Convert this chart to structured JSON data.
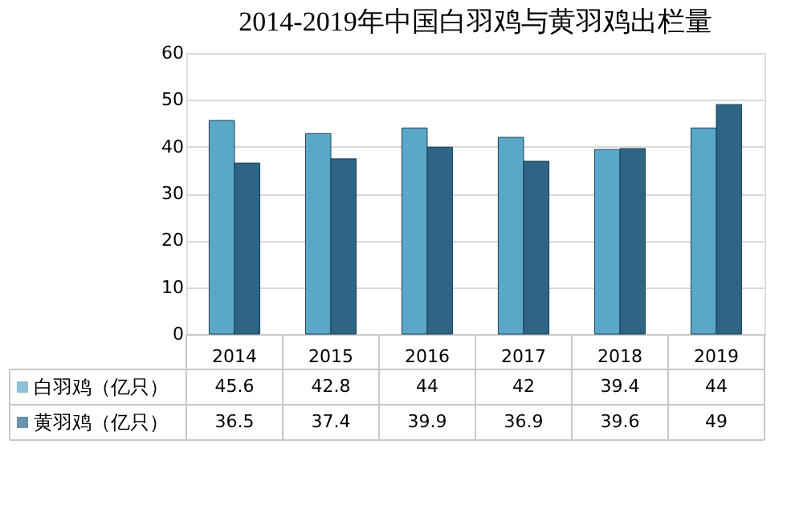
{
  "chart_data": {
    "type": "bar",
    "title": "2014-2019年中国白羽鸡与黄羽鸡出栏量",
    "categories": [
      "2014",
      "2015",
      "2016",
      "2017",
      "2018",
      "2019"
    ],
    "series": [
      {
        "name": "白羽鸡（亿只）",
        "color": "#5ba7c8",
        "values": [
          45.6,
          42.8,
          44,
          42,
          39.4,
          44
        ]
      },
      {
        "name": "黄羽鸡（亿只）",
        "color": "#2e6484",
        "values": [
          36.5,
          37.4,
          39.9,
          36.9,
          39.6,
          49
        ]
      }
    ],
    "ylim": [
      0,
      60
    ],
    "yticks": [
      0,
      10,
      20,
      30,
      40,
      50,
      60
    ],
    "grid": "y",
    "legend": "bottom",
    "data_labels": true
  }
}
